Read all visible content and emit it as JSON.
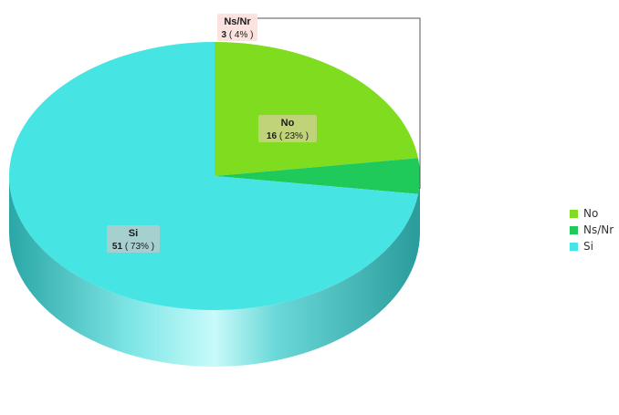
{
  "chart_data": {
    "type": "pie",
    "title": "",
    "legend_position": "right",
    "categories": [
      "No",
      "Ns/Nr",
      "Si"
    ],
    "values": [
      16,
      3,
      51
    ],
    "percent_labels": [
      "( 23% )",
      "( 4% )",
      "( 73% )"
    ],
    "colors": [
      "#7fdc1f",
      "#1fca5a",
      "#47e4e4"
    ]
  }
}
